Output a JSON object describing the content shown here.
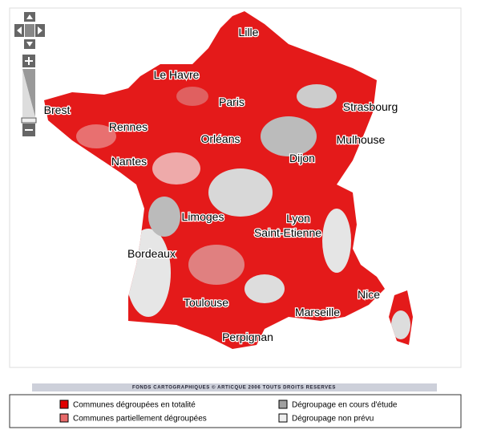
{
  "map": {
    "cities": [
      "Lille",
      "Le Havre",
      "Paris",
      "Strasbourg",
      "Brest",
      "Rennes",
      "Orléans",
      "Mulhouse",
      "Nantes",
      "Dijon",
      "Limoges",
      "Lyon",
      "Saint-Etienne",
      "Bordeaux",
      "Nice",
      "Marseille",
      "Toulouse",
      "Perpignan"
    ]
  },
  "copyright": "FONDS CARTOGRAPHIQUES © ARTICQUE 2006 TOUTS DROITS RESERVES",
  "legend": [
    {
      "label": "Communes dégroupées en totalité",
      "color": "#e00000"
    },
    {
      "label": "Communes partiellement dégroupées",
      "color": "#e86a6a"
    },
    {
      "label": "Dégroupage en cours d'étude",
      "color": "#a0a0a0"
    },
    {
      "label": "Dégroupage non prévu",
      "color": "#eeeeee"
    }
  ]
}
